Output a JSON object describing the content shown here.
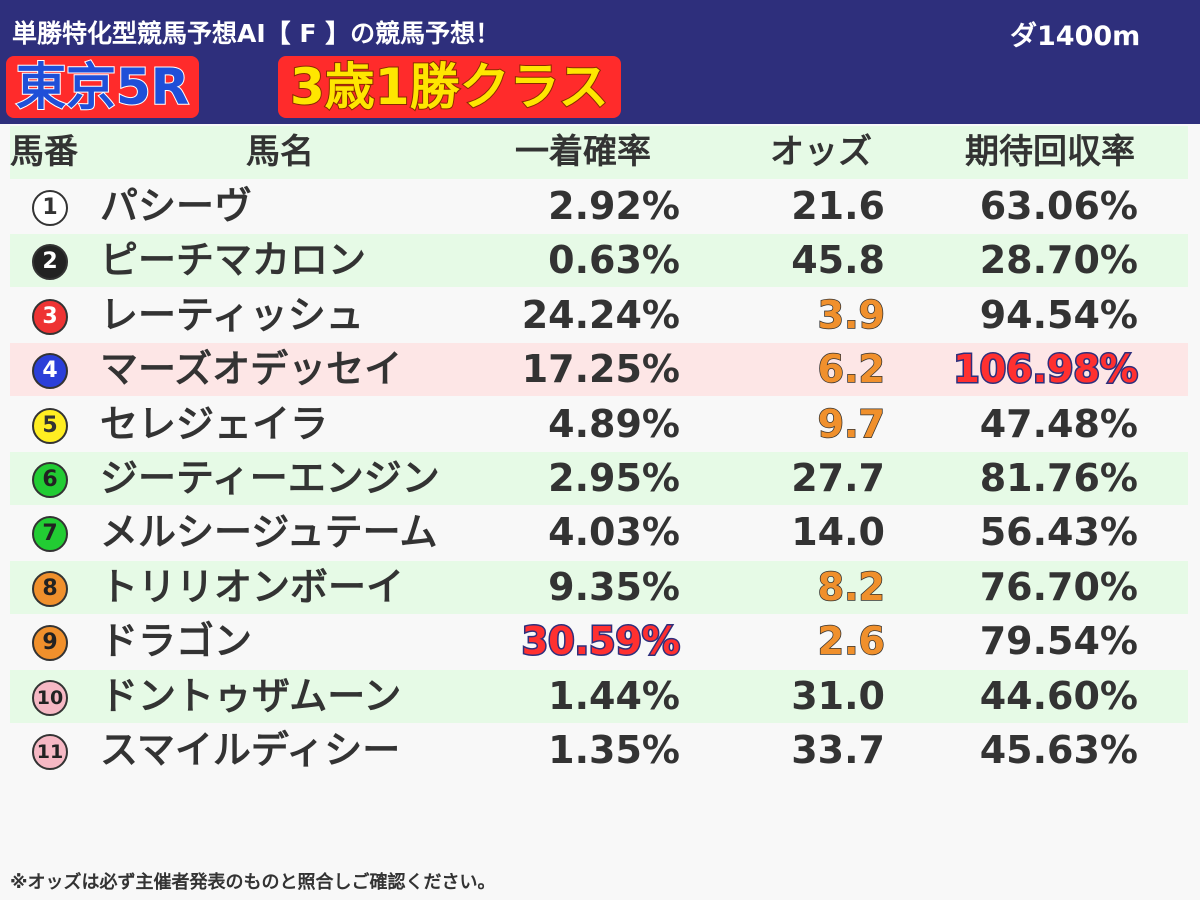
{
  "header": {
    "subtitle": "単勝特化型競馬予想AI【 F 】の競馬予想！",
    "distance": "ダ1400m",
    "race": "東京5R",
    "race_class": "3歳1勝クラス"
  },
  "table": {
    "columns": [
      "馬番",
      "馬名",
      "一着確率",
      "オッズ",
      "期待回収率"
    ],
    "rows": [
      {
        "num": "1",
        "num_bg": "#ffffff",
        "num_fg": "#333333",
        "name": "パシーヴ",
        "prob": "2.92%",
        "odds": "21.6",
        "ret": "63.06%",
        "odds_hi": false,
        "prob_hi": false,
        "ret_hi": false,
        "row_bg": "none"
      },
      {
        "num": "2",
        "num_bg": "#222222",
        "num_fg": "#ffffff",
        "name": "ピーチマカロン",
        "prob": "0.63%",
        "odds": "45.8",
        "ret": "28.70%",
        "odds_hi": false,
        "prob_hi": false,
        "ret_hi": false,
        "row_bg": "alt"
      },
      {
        "num": "3",
        "num_bg": "#ee3333",
        "num_fg": "#ffffff",
        "name": "レーティッシュ",
        "prob": "24.24%",
        "odds": "3.9",
        "ret": "94.54%",
        "odds_hi": true,
        "prob_hi": false,
        "ret_hi": false,
        "row_bg": "none"
      },
      {
        "num": "4",
        "num_bg": "#2b3fd8",
        "num_fg": "#ffffff",
        "name": "マーズオデッセイ",
        "prob": "17.25%",
        "odds": "6.2",
        "ret": "106.98%",
        "odds_hi": true,
        "prob_hi": false,
        "ret_hi": true,
        "row_bg": "hl"
      },
      {
        "num": "5",
        "num_bg": "#ffee22",
        "num_fg": "#333333",
        "name": "セレジェイラ",
        "prob": "4.89%",
        "odds": "9.7",
        "ret": "47.48%",
        "odds_hi": true,
        "prob_hi": false,
        "ret_hi": false,
        "row_bg": "none"
      },
      {
        "num": "6",
        "num_bg": "#22cc33",
        "num_fg": "#222222",
        "name": "ジーティーエンジン",
        "prob": "2.95%",
        "odds": "27.7",
        "ret": "81.76%",
        "odds_hi": false,
        "prob_hi": false,
        "ret_hi": false,
        "row_bg": "alt"
      },
      {
        "num": "7",
        "num_bg": "#22cc33",
        "num_fg": "#222222",
        "name": "メルシージュテーム",
        "prob": "4.03%",
        "odds": "14.0",
        "ret": "56.43%",
        "odds_hi": false,
        "prob_hi": false,
        "ret_hi": false,
        "row_bg": "none"
      },
      {
        "num": "8",
        "num_bg": "#f0902c",
        "num_fg": "#222222",
        "name": "トリリオンボーイ",
        "prob": "9.35%",
        "odds": "8.2",
        "ret": "76.70%",
        "odds_hi": true,
        "prob_hi": false,
        "ret_hi": false,
        "row_bg": "alt"
      },
      {
        "num": "9",
        "num_bg": "#f0902c",
        "num_fg": "#222222",
        "name": "ドラゴン",
        "prob": "30.59%",
        "odds": "2.6",
        "ret": "79.54%",
        "odds_hi": true,
        "prob_hi": true,
        "ret_hi": false,
        "row_bg": "none"
      },
      {
        "num": "10",
        "num_bg": "#f6b8c4",
        "num_fg": "#222222",
        "name": "ドントゥザムーン",
        "prob": "1.44%",
        "odds": "31.0",
        "ret": "44.60%",
        "odds_hi": false,
        "prob_hi": false,
        "ret_hi": false,
        "row_bg": "alt"
      },
      {
        "num": "11",
        "num_bg": "#f6b8c4",
        "num_fg": "#222222",
        "name": "スマイルディシー",
        "prob": "1.35%",
        "odds": "33.7",
        "ret": "45.63%",
        "odds_hi": false,
        "prob_hi": false,
        "ret_hi": false,
        "row_bg": "none"
      }
    ]
  },
  "footnote": "※オッズは必ず主催者発表のものと照合しご確認ください。"
}
